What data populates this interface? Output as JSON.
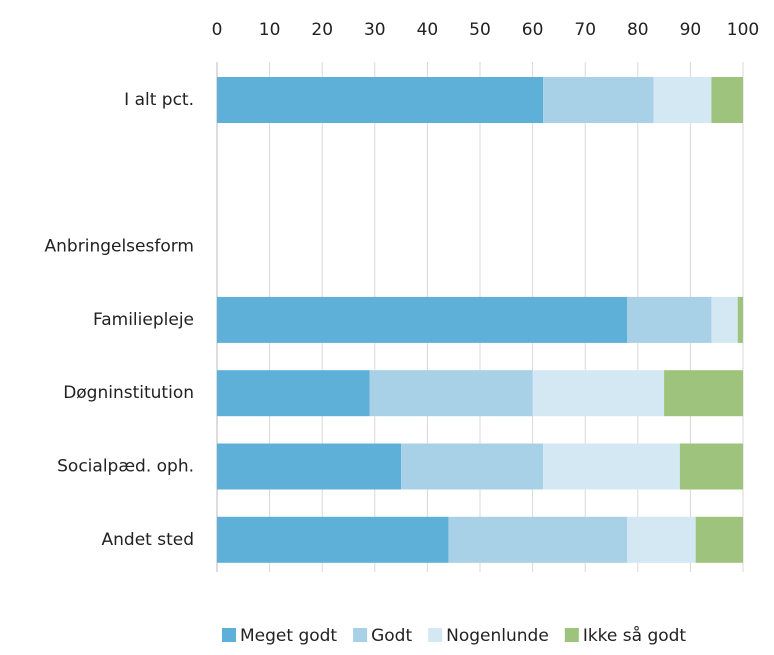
{
  "chart_data": {
    "type": "stacked-barh",
    "categories": [
      "I alt pct.",
      null,
      "Anbringelsesform",
      "Familiepleje",
      "Døgninstitution",
      "Socialpæd. oph.",
      "Andet sted"
    ],
    "series": [
      {
        "name": "Meget godt",
        "color": "#5fb0d8",
        "values": [
          62,
          null,
          null,
          78,
          29,
          35,
          44
        ]
      },
      {
        "name": "Godt",
        "color": "#a8d0e6",
        "values": [
          21,
          null,
          null,
          16,
          31,
          27,
          34
        ]
      },
      {
        "name": "Nogenlunde",
        "color": "#d3e8f3",
        "values": [
          11,
          null,
          null,
          5,
          25,
          26,
          13
        ]
      },
      {
        "name": "Ikke så godt",
        "color": "#9dc37c",
        "values": [
          6,
          null,
          null,
          1,
          15,
          12,
          9
        ]
      }
    ],
    "xlim": [
      0,
      100
    ],
    "xticks": [
      0,
      10,
      20,
      30,
      40,
      50,
      60,
      70,
      80,
      90,
      100
    ],
    "grid": true,
    "legend": "bottom"
  }
}
